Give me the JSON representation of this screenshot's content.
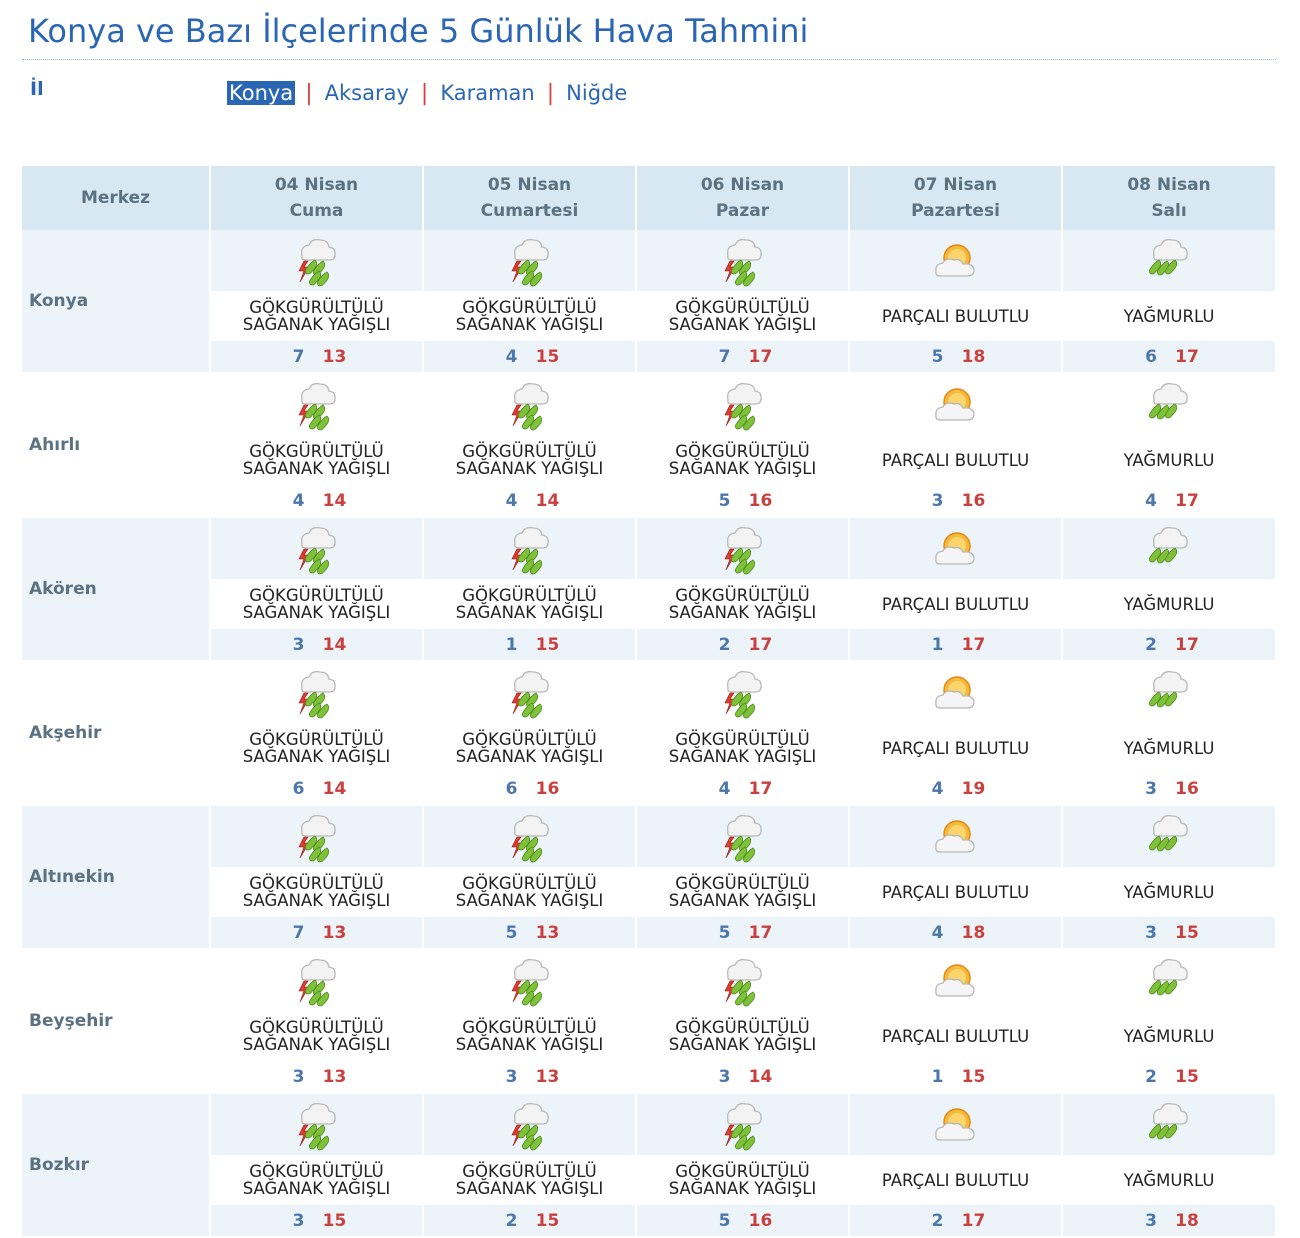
{
  "page": {
    "title": "Konya ve Bazı İlçelerinde 5 Günlük Hava Tahmini",
    "il_label": "İl"
  },
  "provinces": [
    {
      "name": "Konya",
      "active": true
    },
    {
      "name": "Aksaray",
      "active": false
    },
    {
      "name": "Karaman",
      "active": false
    },
    {
      "name": "Niğde",
      "active": false
    }
  ],
  "colors": {
    "link": "#2a66b4",
    "separator": "#d9403f",
    "header_bg": "#d8e8f2",
    "row_bg": "#edf4f9",
    "min_temp": "#4b77ab",
    "max_temp": "#c9413f"
  },
  "table": {
    "station_header": "Merkez",
    "days": [
      {
        "date": "04 Nisan",
        "weekday": "Cuma"
      },
      {
        "date": "05 Nisan",
        "weekday": "Cumartesi"
      },
      {
        "date": "06 Nisan",
        "weekday": "Pazar"
      },
      {
        "date": "07 Nisan",
        "weekday": "Pazartesi"
      },
      {
        "date": "08 Nisan",
        "weekday": "Salı"
      }
    ],
    "conditions": {
      "storm": {
        "line1": "GÖKGÜRÜLTÜLÜ",
        "line2": "SAĞANAK YAĞIŞLI",
        "icon": "thunderstorm-icon"
      },
      "partly": {
        "line1": "PARÇALI BULUTLU",
        "line2": "",
        "icon": "partly-cloudy-icon"
      },
      "rain": {
        "line1": "YAĞMURLU",
        "line2": "",
        "icon": "rain-icon"
      }
    },
    "rows": [
      {
        "name": "Konya",
        "forecasts": [
          {
            "cond": "storm",
            "min": "7",
            "max": "13"
          },
          {
            "cond": "storm",
            "min": "4",
            "max": "15"
          },
          {
            "cond": "storm",
            "min": "7",
            "max": "17"
          },
          {
            "cond": "partly",
            "min": "5",
            "max": "18"
          },
          {
            "cond": "rain",
            "min": "6",
            "max": "17"
          }
        ]
      },
      {
        "name": "Ahırlı",
        "forecasts": [
          {
            "cond": "storm",
            "min": "4",
            "max": "14"
          },
          {
            "cond": "storm",
            "min": "4",
            "max": "14"
          },
          {
            "cond": "storm",
            "min": "5",
            "max": "16"
          },
          {
            "cond": "partly",
            "min": "3",
            "max": "16"
          },
          {
            "cond": "rain",
            "min": "4",
            "max": "17"
          }
        ]
      },
      {
        "name": "Akören",
        "forecasts": [
          {
            "cond": "storm",
            "min": "3",
            "max": "14"
          },
          {
            "cond": "storm",
            "min": "1",
            "max": "15"
          },
          {
            "cond": "storm",
            "min": "2",
            "max": "17"
          },
          {
            "cond": "partly",
            "min": "1",
            "max": "17"
          },
          {
            "cond": "rain",
            "min": "2",
            "max": "17"
          }
        ]
      },
      {
        "name": "Akşehir",
        "forecasts": [
          {
            "cond": "storm",
            "min": "6",
            "max": "14"
          },
          {
            "cond": "storm",
            "min": "6",
            "max": "16"
          },
          {
            "cond": "storm",
            "min": "4",
            "max": "17"
          },
          {
            "cond": "partly",
            "min": "4",
            "max": "19"
          },
          {
            "cond": "rain",
            "min": "3",
            "max": "16"
          }
        ]
      },
      {
        "name": "Altınekin",
        "forecasts": [
          {
            "cond": "storm",
            "min": "7",
            "max": "13"
          },
          {
            "cond": "storm",
            "min": "5",
            "max": "13"
          },
          {
            "cond": "storm",
            "min": "5",
            "max": "17"
          },
          {
            "cond": "partly",
            "min": "4",
            "max": "18"
          },
          {
            "cond": "rain",
            "min": "3",
            "max": "15"
          }
        ]
      },
      {
        "name": "Beyşehir",
        "forecasts": [
          {
            "cond": "storm",
            "min": "3",
            "max": "13"
          },
          {
            "cond": "storm",
            "min": "3",
            "max": "13"
          },
          {
            "cond": "storm",
            "min": "3",
            "max": "14"
          },
          {
            "cond": "partly",
            "min": "1",
            "max": "15"
          },
          {
            "cond": "rain",
            "min": "2",
            "max": "15"
          }
        ]
      },
      {
        "name": "Bozkır",
        "forecasts": [
          {
            "cond": "storm",
            "min": "3",
            "max": "15"
          },
          {
            "cond": "storm",
            "min": "2",
            "max": "15"
          },
          {
            "cond": "storm",
            "min": "5",
            "max": "16"
          },
          {
            "cond": "partly",
            "min": "2",
            "max": "17"
          },
          {
            "cond": "rain",
            "min": "3",
            "max": "18"
          }
        ]
      }
    ]
  }
}
